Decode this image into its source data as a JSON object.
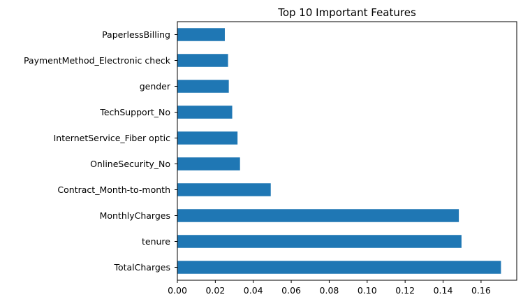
{
  "chart_data": {
    "type": "bar",
    "orientation": "horizontal",
    "title": "Top 10 Important Features",
    "xlabel": "",
    "ylabel": "",
    "categories": [
      "TotalCharges",
      "tenure",
      "MonthlyCharges",
      "Contract_Month-to-month",
      "OnlineSecurity_No",
      "InternetService_Fiber optic",
      "TechSupport_No",
      "gender",
      "PaymentMethod_Electronic check",
      "PaperlessBilling"
    ],
    "values": [
      0.1705,
      0.1497,
      0.1483,
      0.0492,
      0.033,
      0.0317,
      0.0289,
      0.0271,
      0.0267,
      0.025
    ],
    "xlim": [
      0,
      0.1788
    ],
    "xticks": [
      "0.00",
      "0.02",
      "0.04",
      "0.06",
      "0.08",
      "0.10",
      "0.12",
      "0.14",
      "0.16"
    ],
    "bar_color": "#1f77b4",
    "grid": false,
    "legend": "none"
  }
}
